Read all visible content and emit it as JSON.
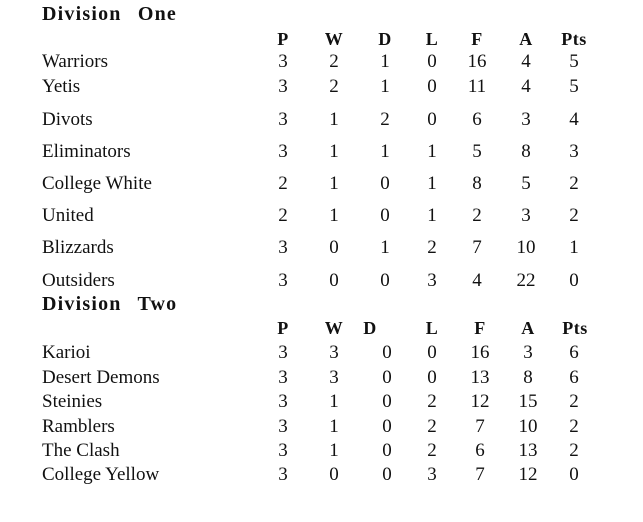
{
  "divisions": [
    {
      "title": "Division One",
      "columns": [
        "P",
        "W",
        "D",
        "L",
        "F",
        "A",
        "Pts"
      ],
      "rows": [
        {
          "team": "Warriors",
          "values": [
            "3",
            "2",
            "1",
            "0",
            "16",
            "4",
            "5"
          ]
        },
        {
          "team": "Yetis",
          "values": [
            "3",
            "2",
            "1",
            "0",
            "11",
            "4",
            "5"
          ]
        },
        {
          "team": "Divots",
          "values": [
            "3",
            "1",
            "2",
            "0",
            "6",
            "3",
            "4"
          ]
        },
        {
          "team": "Eliminators",
          "values": [
            "3",
            "1",
            "1",
            "1",
            "5",
            "8",
            "3"
          ]
        },
        {
          "team": "College White",
          "values": [
            "2",
            "1",
            "0",
            "1",
            "8",
            "5",
            "2"
          ]
        },
        {
          "team": "United",
          "values": [
            "2",
            "1",
            "0",
            "1",
            "2",
            "3",
            "2"
          ]
        },
        {
          "team": "Blizzards",
          "values": [
            "3",
            "0",
            "1",
            "2",
            "7",
            "10",
            "1"
          ]
        },
        {
          "team": "Outsiders",
          "values": [
            "3",
            "0",
            "0",
            "3",
            "4",
            "22",
            "0"
          ]
        }
      ]
    },
    {
      "title": "Division Two",
      "columns": [
        "P",
        "W",
        "D",
        "L",
        "F",
        "A",
        "Pts"
      ],
      "rows": [
        {
          "team": "Karioi",
          "values": [
            "3",
            "3",
            "0",
            "0",
            "16",
            "3",
            "6"
          ]
        },
        {
          "team": "Desert Demons",
          "values": [
            "3",
            "3",
            "0",
            "0",
            "13",
            "8",
            "6"
          ]
        },
        {
          "team": "Steinies",
          "values": [
            "3",
            "1",
            "0",
            "2",
            "12",
            "15",
            "2"
          ]
        },
        {
          "team": "Ramblers",
          "values": [
            "3",
            "1",
            "0",
            "2",
            "7",
            "10",
            "2"
          ]
        },
        {
          "team": "The Clash",
          "values": [
            "3",
            "1",
            "0",
            "2",
            "6",
            "13",
            "2"
          ]
        },
        {
          "team": "College Yellow",
          "values": [
            "3",
            "0",
            "0",
            "3",
            "7",
            "12",
            "0"
          ]
        }
      ]
    }
  ]
}
